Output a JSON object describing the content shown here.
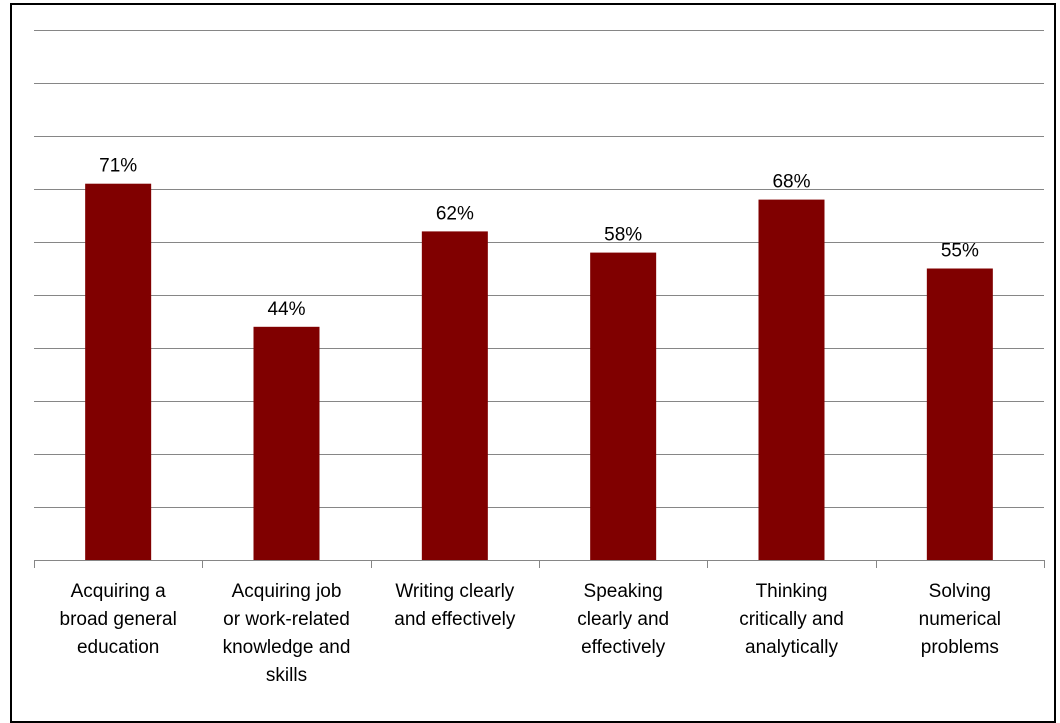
{
  "chart_data": {
    "type": "bar",
    "categories": [
      [
        "Acquiring a",
        "broad general",
        "education"
      ],
      [
        "Acquiring job",
        "or work-related",
        "knowledge and",
        "skills"
      ],
      [
        "Writing clearly",
        "and effectively"
      ],
      [
        "Speaking",
        "clearly and",
        "effectively"
      ],
      [
        "Thinking",
        "critically and",
        "analytically"
      ],
      [
        "Solving",
        "numerical",
        "problems"
      ]
    ],
    "values": [
      71,
      44,
      62,
      58,
      68,
      55
    ],
    "data_labels": [
      "71%",
      "44%",
      "62%",
      "58%",
      "68%",
      "55%"
    ],
    "ylim": [
      0,
      100
    ],
    "grid": true,
    "bar_color": "#800000"
  }
}
